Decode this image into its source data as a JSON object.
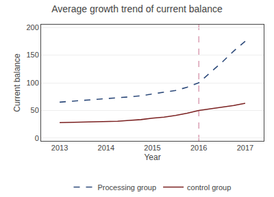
{
  "chart_data": {
    "type": "line",
    "title": "Average growth trend of current balance",
    "x_label": "Year",
    "y_label": "Current balance",
    "x": [
      2013.0,
      2013.25,
      2013.5,
      2013.75,
      2014.0,
      2014.25,
      2014.5,
      2014.75,
      2015.0,
      2015.25,
      2015.5,
      2015.75,
      2016.0,
      2016.25,
      2016.5,
      2016.75,
      2017.0
    ],
    "series": [
      {
        "name": "Processing group",
        "color": "#2d4a7a",
        "line_style": "dashed",
        "values": [
          65,
          66.5,
          68,
          69.5,
          71,
          72.5,
          74.5,
          76.5,
          80,
          83,
          86,
          92,
          100,
          118,
          137,
          157,
          175
        ]
      },
      {
        "name": "control group",
        "color": "#7a2020",
        "line_style": "solid",
        "values": [
          28,
          28.5,
          29,
          29.5,
          30,
          30.5,
          32,
          33.5,
          36,
          38,
          41,
          45,
          50,
          53,
          56,
          59,
          63
        ]
      }
    ],
    "vlines": [
      {
        "x": 2016,
        "color": "#c87090",
        "line_style": "dashed"
      }
    ],
    "xlim": [
      2012.6,
      2017.4
    ],
    "xticks": [
      2013,
      2014,
      2015,
      2016,
      2017
    ],
    "ylim": [
      -5,
      205
    ],
    "yticks": [
      0,
      50,
      100,
      150,
      200
    ],
    "grid": "y",
    "legend": "bottom"
  }
}
